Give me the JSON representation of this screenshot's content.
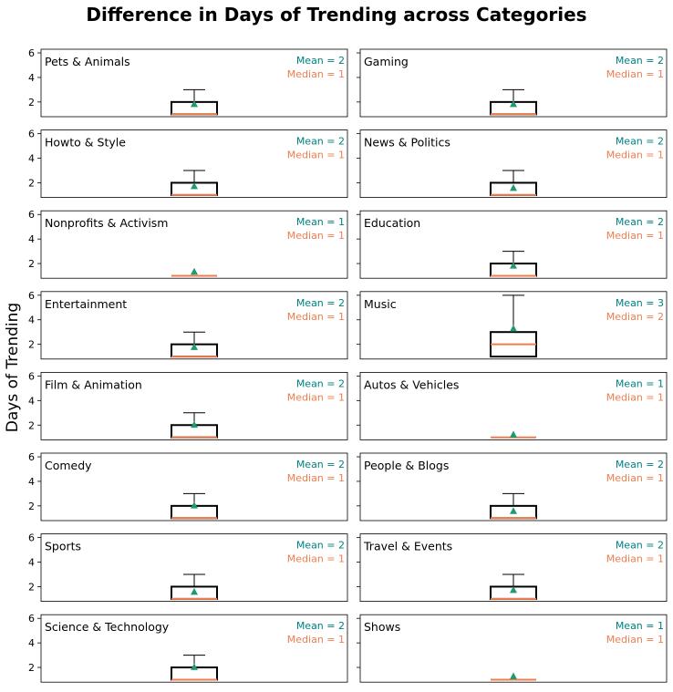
{
  "chart_data": {
    "type": "box",
    "title": "Difference in Days of Trending across Categories",
    "ylabel": "Days of Trending",
    "ylim": [
      0.8,
      6.3
    ],
    "yticks": [
      2,
      4,
      6
    ],
    "colors": {
      "mean": "#008080",
      "median": "#f07d4f",
      "box": "#000000",
      "marker": "#1f9a6f"
    },
    "panels": [
      {
        "category": "Pets & Animals",
        "mean_label": "Mean = 2",
        "median_label": "Median = 1",
        "q1": 1,
        "q3": 2,
        "median": 1,
        "whislo": 1,
        "whishi": 3,
        "mean": 1.85
      },
      {
        "category": "Gaming",
        "mean_label": "Mean = 2",
        "median_label": "Median = 1",
        "q1": 1,
        "q3": 2,
        "median": 1,
        "whislo": 1,
        "whishi": 3,
        "mean": 1.85
      },
      {
        "category": "Howto & Style",
        "mean_label": "Mean = 2",
        "median_label": "Median = 1",
        "q1": 1,
        "q3": 2,
        "median": 1,
        "whislo": 1,
        "whishi": 3,
        "mean": 1.75
      },
      {
        "category": "News & Politics",
        "mean_label": "Mean = 2",
        "median_label": "Median = 1",
        "q1": 1,
        "q3": 2,
        "median": 1,
        "whislo": 1,
        "whishi": 3,
        "mean": 1.6
      },
      {
        "category": "Nonprofits & Activism",
        "mean_label": "Mean = 1",
        "median_label": "Median = 1",
        "q1": 1,
        "q3": 1,
        "median": 1,
        "whislo": 1,
        "whishi": 1,
        "mean": 1.35
      },
      {
        "category": "Education",
        "mean_label": "Mean = 2",
        "median_label": "Median = 1",
        "q1": 1,
        "q3": 2,
        "median": 1,
        "whislo": 1,
        "whishi": 3,
        "mean": 1.85
      },
      {
        "category": "Entertainment",
        "mean_label": "Mean = 2",
        "median_label": "Median = 1",
        "q1": 1,
        "q3": 2,
        "median": 1,
        "whislo": 1,
        "whishi": 3,
        "mean": 1.8
      },
      {
        "category": "Music",
        "mean_label": "Mean = 3",
        "median_label": "Median = 2",
        "q1": 1,
        "q3": 3,
        "median": 2,
        "whislo": 1,
        "whishi": 6,
        "mean": 3.3
      },
      {
        "category": "Film & Animation",
        "mean_label": "Mean = 2",
        "median_label": "Median = 1",
        "q1": 1,
        "q3": 2,
        "median": 1,
        "whislo": 1,
        "whishi": 3,
        "mean": 2.05
      },
      {
        "category": "Autos & Vehicles",
        "mean_label": "Mean = 1",
        "median_label": "Median = 1",
        "q1": 1,
        "q3": 1,
        "median": 1,
        "whislo": 1,
        "whishi": 1,
        "mean": 1.25
      },
      {
        "category": "Comedy",
        "mean_label": "Mean = 2",
        "median_label": "Median = 1",
        "q1": 1,
        "q3": 2,
        "median": 1,
        "whislo": 1,
        "whishi": 3,
        "mean": 2.05
      },
      {
        "category": "People & Blogs",
        "mean_label": "Mean = 2",
        "median_label": "Median = 1",
        "q1": 1,
        "q3": 2,
        "median": 1,
        "whislo": 1,
        "whishi": 3,
        "mean": 1.6
      },
      {
        "category": "Sports",
        "mean_label": "Mean = 2",
        "median_label": "Median = 1",
        "q1": 1,
        "q3": 2,
        "median": 1,
        "whislo": 1,
        "whishi": 3,
        "mean": 1.6
      },
      {
        "category": "Travel & Events",
        "mean_label": "Mean = 2",
        "median_label": "Median = 1",
        "q1": 1,
        "q3": 2,
        "median": 1,
        "whislo": 1,
        "whishi": 3,
        "mean": 1.75
      },
      {
        "category": "Science & Technology",
        "mean_label": "Mean = 2",
        "median_label": "Median = 1",
        "q1": 1,
        "q3": 2,
        "median": 1,
        "whislo": 1,
        "whishi": 3,
        "mean": 2.05
      },
      {
        "category": "Shows",
        "mean_label": "Mean = 1",
        "median_label": "Median = 1",
        "q1": 1,
        "q3": 1,
        "median": 1,
        "whislo": 1,
        "whishi": 1,
        "mean": 1.3
      }
    ]
  }
}
